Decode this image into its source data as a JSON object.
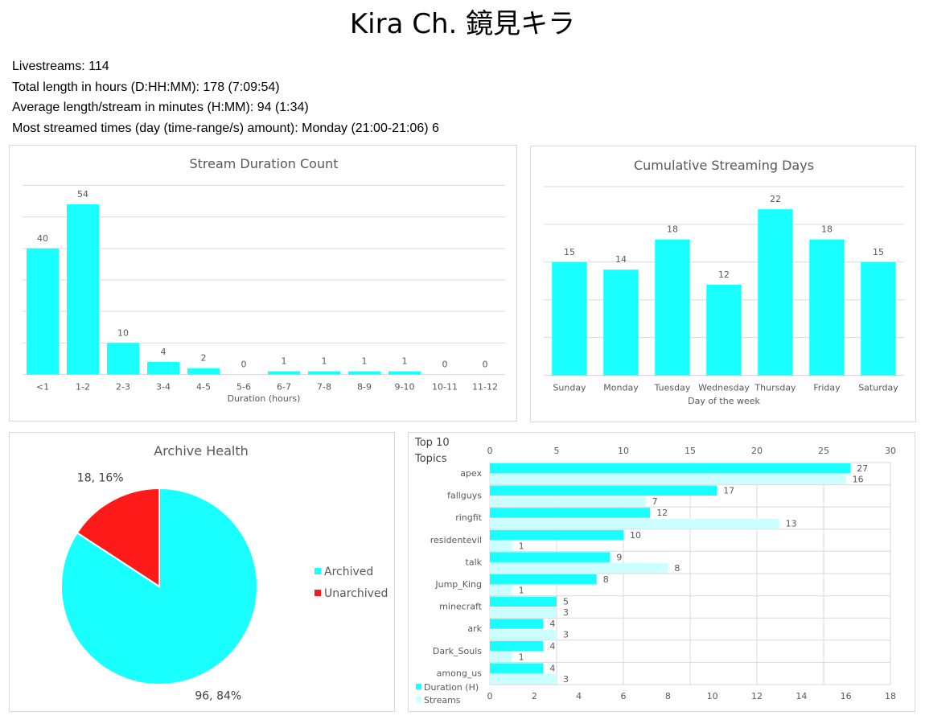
{
  "header": {
    "title": "Kira Ch. 鏡見キラ",
    "stats": [
      "Livestreams: 114",
      "Total length in hours (D:HH:MM): 178 (7:09:54)",
      "Average length/stream in minutes (H:MM): 94 (1:34)",
      "Most streamed times (day (time-range/s) amount): Monday (21:00-21:06) 6"
    ]
  },
  "colors": {
    "cyan": "#19FFFF",
    "lightcyan": "#CCFFFF",
    "red": "#FF1A1A",
    "grid": "#D9D9D9",
    "text": "#595959"
  },
  "chart_data": [
    {
      "id": "duration",
      "type": "bar",
      "title": "Stream Duration Count",
      "xlabel": "Duration (hours)",
      "ylabel": "",
      "categories": [
        "<1",
        "1-2",
        "2-3",
        "3-4",
        "4-5",
        "5-6",
        "6-7",
        "7-8",
        "8-9",
        "9-10",
        "10-11",
        "11-12"
      ],
      "values": [
        40,
        54,
        10,
        4,
        2,
        0,
        1,
        1,
        1,
        1,
        0,
        0
      ],
      "ylim": [
        0,
        60
      ],
      "grid": true
    },
    {
      "id": "days",
      "type": "bar",
      "title": "Cumulative Streaming Days",
      "xlabel": "Day of the week",
      "ylabel": "",
      "categories": [
        "Sunday",
        "Monday",
        "Tuesday",
        "Wednesday",
        "Thursday",
        "Friday",
        "Saturday"
      ],
      "values": [
        15,
        14,
        18,
        12,
        22,
        18,
        15
      ],
      "ylim": [
        0,
        25
      ],
      "grid": true
    },
    {
      "id": "archive",
      "type": "pie",
      "title": "Archive Health",
      "labels": [
        "Archived",
        "Unarchived"
      ],
      "values": [
        96,
        18
      ],
      "percent_labels": [
        "96, 84%",
        "18, 16%"
      ],
      "legend": "right"
    },
    {
      "id": "topics",
      "type": "bar",
      "orientation": "horizontal",
      "title": "Top 10 Topics",
      "categories": [
        "apex",
        "fallguys",
        "ringfit",
        "residentevil",
        "talk",
        "Jump_King",
        "minecraft",
        "ark",
        "Dark_Souls",
        "among_us"
      ],
      "series": [
        {
          "name": "Duration (H)",
          "axis": "top",
          "values": [
            27,
            17,
            12,
            10,
            9,
            8,
            5,
            4,
            4,
            4
          ]
        },
        {
          "name": "Streams",
          "axis": "bottom",
          "values": [
            16,
            7,
            13,
            1,
            8,
            1,
            3,
            3,
            1,
            3
          ]
        }
      ],
      "top_axis": {
        "range": [
          0,
          30
        ],
        "ticks": [
          "0",
          "5",
          "10",
          "15",
          "20",
          "25",
          "30"
        ]
      },
      "bottom_axis": {
        "range": [
          0,
          18
        ],
        "ticks": [
          "0",
          "2",
          "4",
          "6",
          "8",
          "10",
          "12",
          "14",
          "16",
          "18"
        ]
      },
      "legend": "bottom-left"
    }
  ]
}
